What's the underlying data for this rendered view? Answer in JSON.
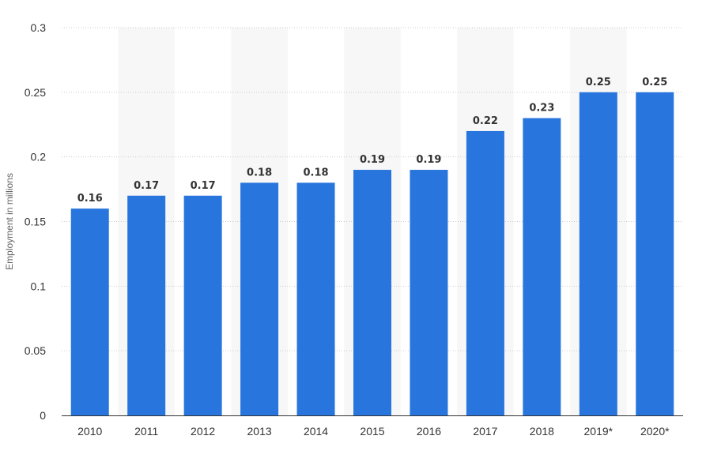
{
  "chart_data": {
    "type": "bar",
    "categories": [
      "2010",
      "2011",
      "2012",
      "2013",
      "2014",
      "2015",
      "2016",
      "2017",
      "2018",
      "2019*",
      "2020*"
    ],
    "series": [
      {
        "values": [
          0.16,
          0.17,
          0.17,
          0.18,
          0.18,
          0.19,
          0.19,
          0.22,
          0.23,
          0.25,
          0.25
        ]
      }
    ],
    "value_labels": [
      "0.16",
      "0.17",
      "0.17",
      "0.18",
      "0.18",
      "0.19",
      "0.19",
      "0.22",
      "0.23",
      "0.25",
      "0.25"
    ],
    "title": "",
    "xlabel": "",
    "ylabel": "Employment in millions",
    "ylim": [
      0,
      0.3
    ],
    "yticks": [
      "0",
      "0.05",
      "0.1",
      "0.15",
      "0.2",
      "0.25",
      "0.3"
    ],
    "ytick_values": [
      0,
      0.05,
      0.1,
      0.15,
      0.2,
      0.25,
      0.3
    ],
    "grid": true,
    "grid_style": "dotted",
    "alternating_column_shading": true,
    "colors": {
      "bar": "#2876dd",
      "grid": "#cccccc",
      "band": "#f7f7f7",
      "axis": "#333333"
    }
  }
}
